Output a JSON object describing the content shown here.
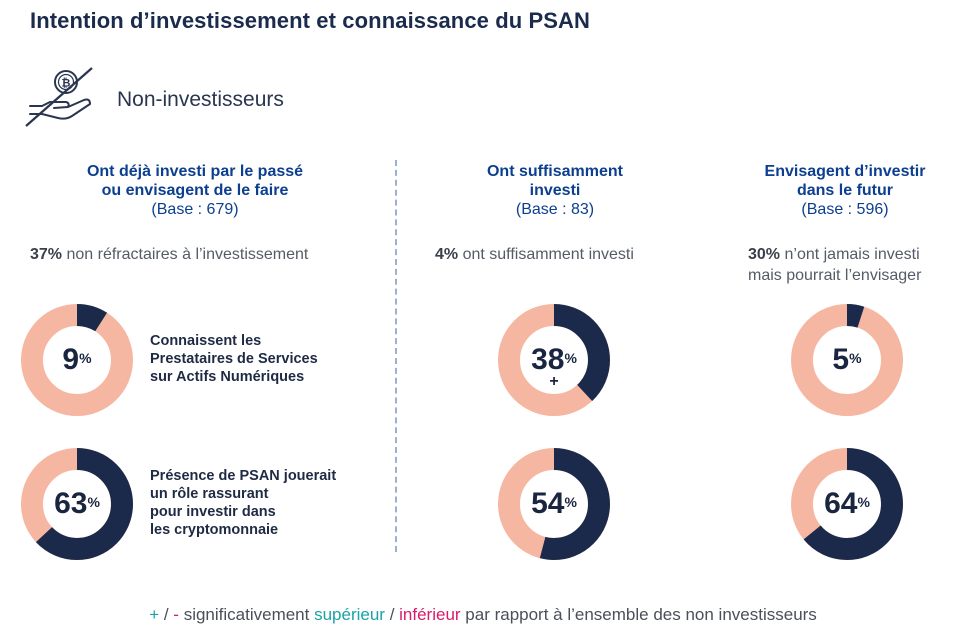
{
  "title": "Intention d’investissement et connaissance du PSAN",
  "section": {
    "label": "Non-investisseurs",
    "icon": "no-bitcoin-hand-icon"
  },
  "columns": [
    {
      "heading_line1": "Ont déjà investi par le passé",
      "heading_line2": "ou envisagent de le faire",
      "base": "(Base : 679)",
      "stat_value": "37%",
      "stat_text": "non réfractaires à l’investissement",
      "stat_text2": ""
    },
    {
      "heading_line1": "Ont suffisamment",
      "heading_line2": "investi",
      "base": "(Base : 83)",
      "stat_value": "4%",
      "stat_text": "ont suffisamment investi",
      "stat_text2": ""
    },
    {
      "heading_line1": "Envisagent d’investir",
      "heading_line2": "dans le futur",
      "base": "(Base : 596)",
      "stat_value": "30%",
      "stat_text": "n’ont jamais investi",
      "stat_text2": "mais pourrait l’envisager"
    }
  ],
  "rows": [
    {
      "desc_lines": [
        "Connaissent les",
        "Prestataires de Services",
        "sur Actifs Numériques"
      ]
    },
    {
      "desc_lines": [
        "Présence de PSAN jouerait",
        "un rôle rassurant",
        "pour investir dans",
        "les cryptomonnaie"
      ]
    }
  ],
  "chart_data": {
    "type": "pie",
    "unit": "%",
    "donuts": [
      {
        "row": 0,
        "column": 0,
        "value": 9,
        "significance": ""
      },
      {
        "row": 0,
        "column": 1,
        "value": 38,
        "significance": "+"
      },
      {
        "row": 0,
        "column": 2,
        "value": 5,
        "significance": ""
      },
      {
        "row": 1,
        "column": 0,
        "value": 63,
        "significance": ""
      },
      {
        "row": 1,
        "column": 1,
        "value": 54,
        "significance": ""
      },
      {
        "row": 1,
        "column": 2,
        "value": 64,
        "significance": ""
      }
    ],
    "colors": {
      "filled": "#1b2a4a",
      "remaining": "#f6b7a2"
    }
  },
  "footer": {
    "plus": "+",
    "sep1": " / ",
    "minus": "-",
    "text1": " significativement ",
    "superieur": "supérieur",
    "sep2": " / ",
    "inferieur": "inférieur",
    "text2": " par rapport à l’ensemble des non investisseurs"
  }
}
